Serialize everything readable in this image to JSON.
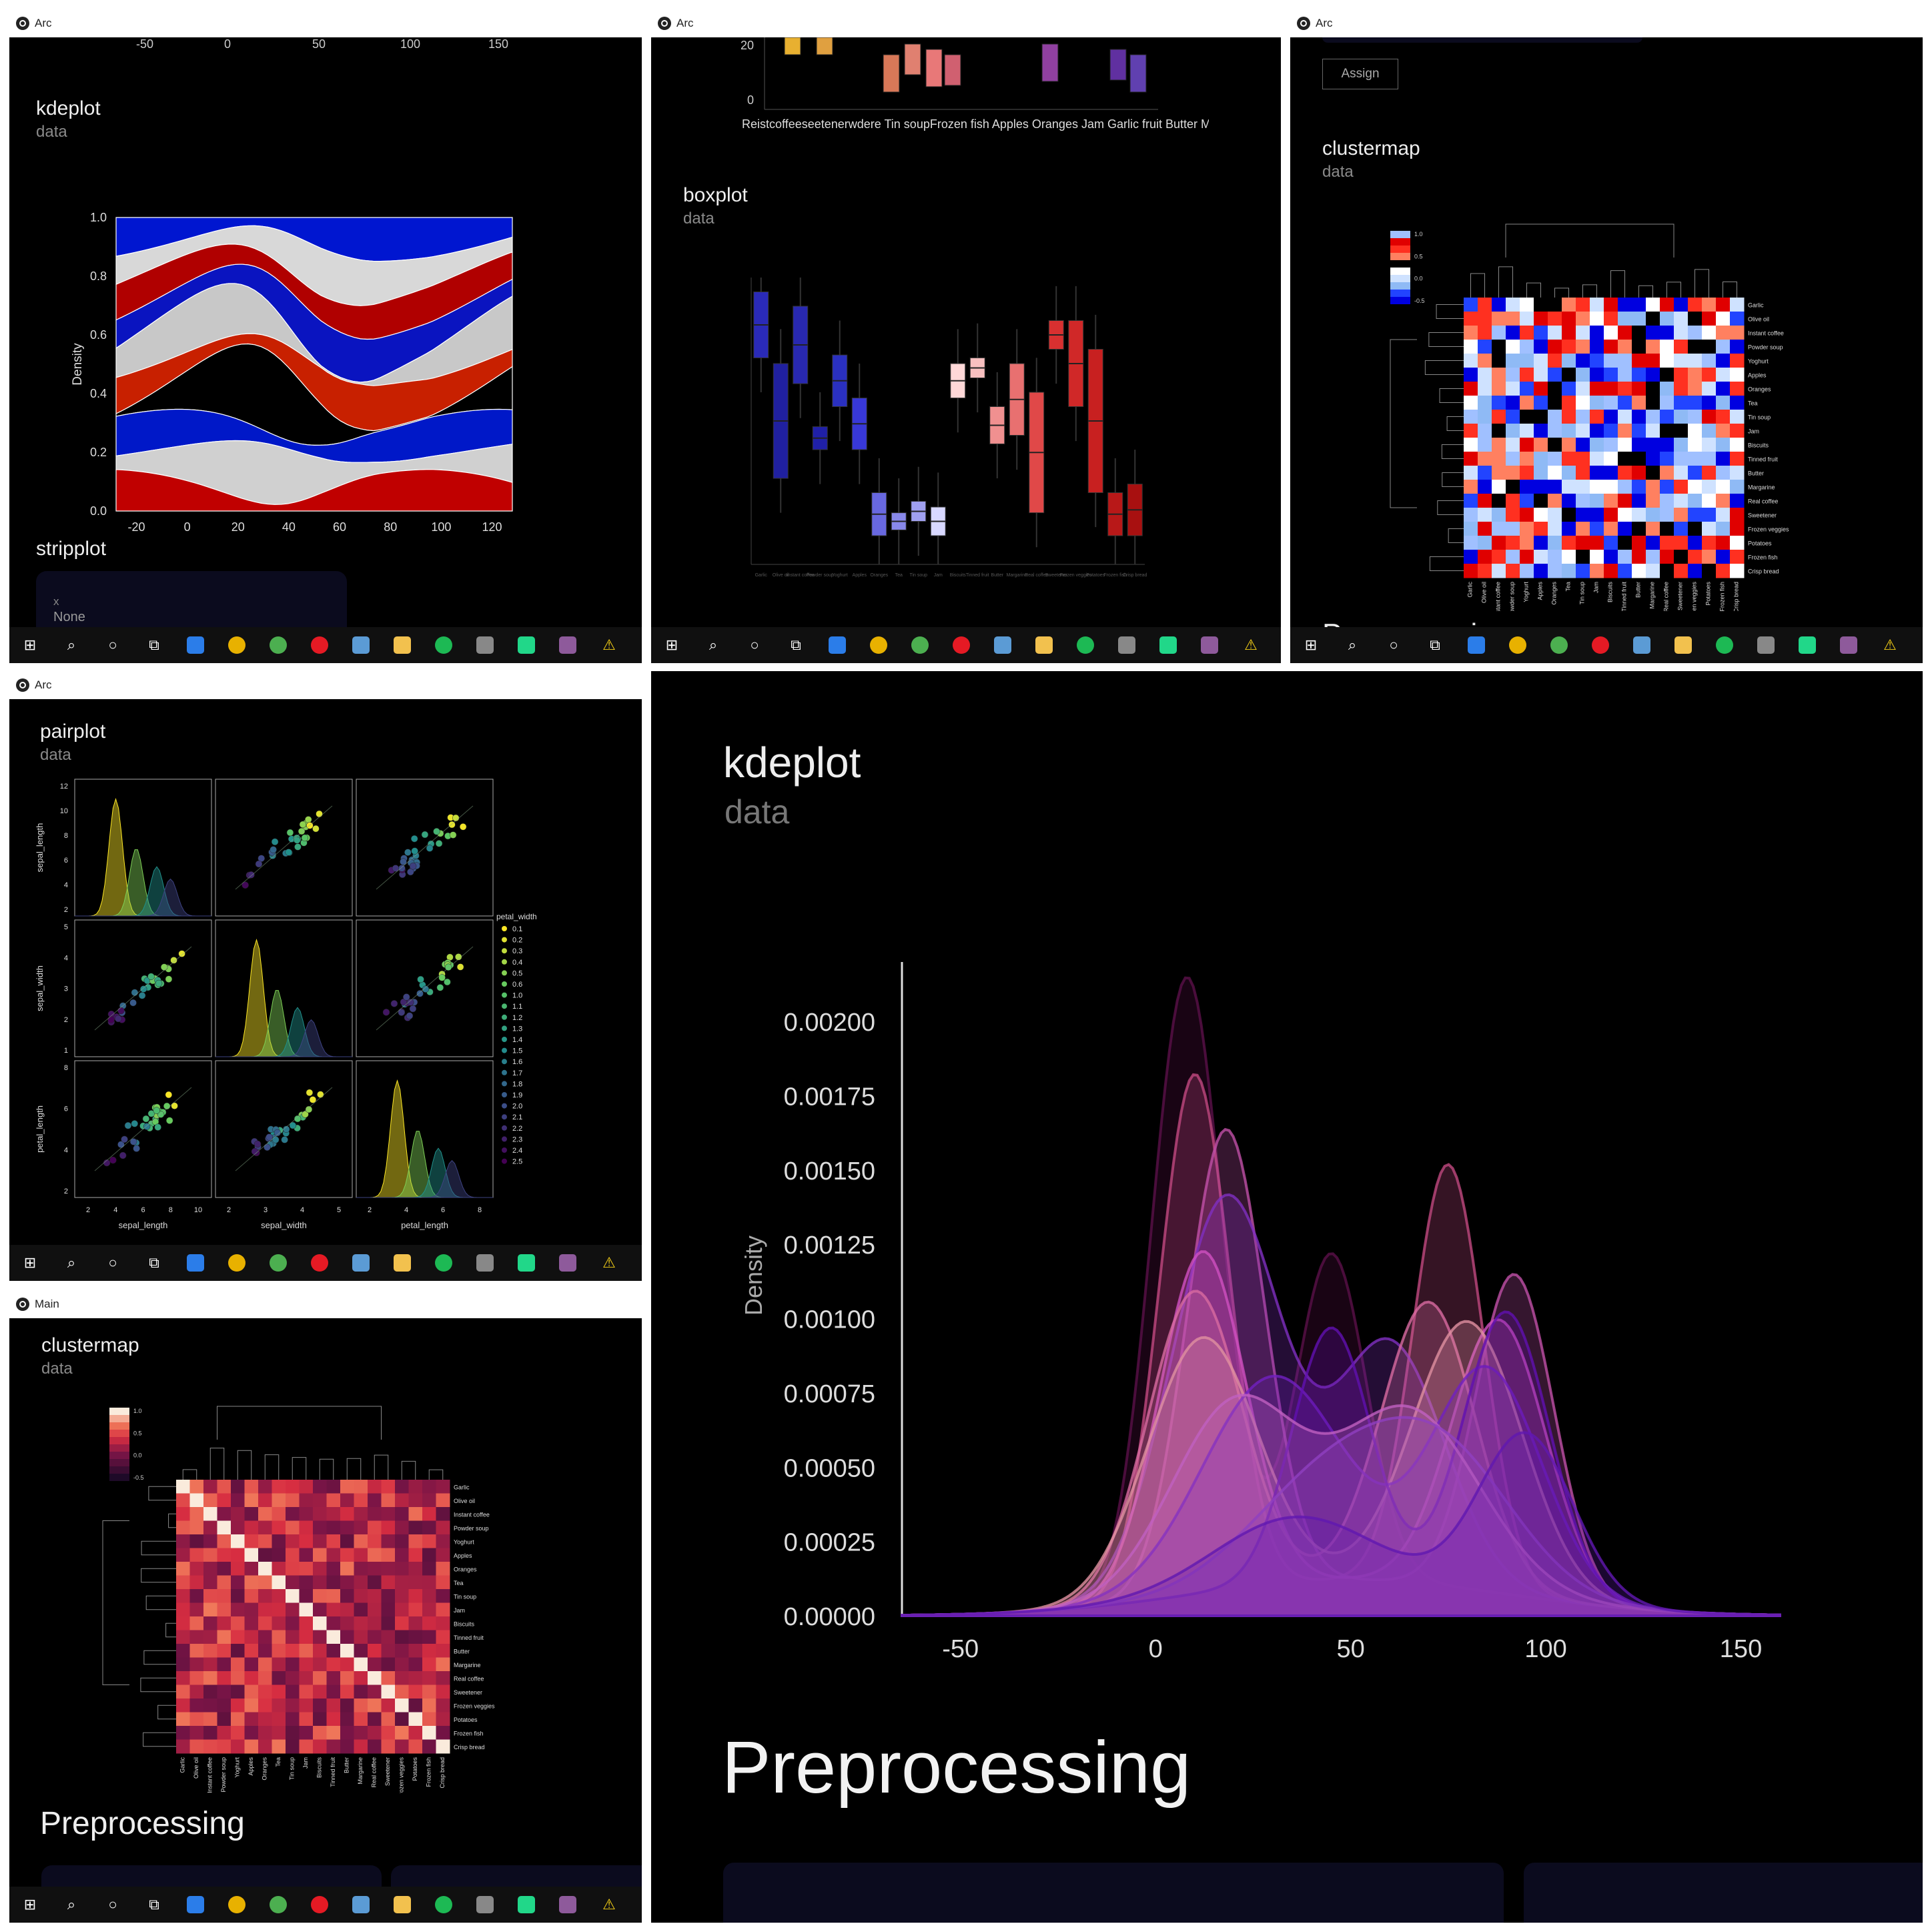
{
  "windows": [
    {
      "id": "w1",
      "title": "Arc",
      "heading": "kdeplot",
      "subheading": "data",
      "top_axis_ticks": [
        "-50",
        "0",
        "50",
        "100",
        "150"
      ],
      "next_heading": "stripplot",
      "input_label": "x",
      "input_value": "None"
    },
    {
      "id": "w2",
      "title": "Arc",
      "top_ticks_y": [
        "20",
        "0"
      ],
      "top_labels": "Reistcoffeeseetenerwdere Tin soupFrozen fish Apples Oranges Jam Garlic fruit Butter Margarine Olive oil Yoghurt Crispbread",
      "heading": "boxplot",
      "subheading": "data"
    },
    {
      "id": "w3",
      "title": "Arc",
      "assign_label": "Assign",
      "heading": "clustermap",
      "subheading": "data",
      "colorbar_ticks": [
        "1.0",
        "0.5",
        "0.0",
        "-0.5"
      ],
      "next_heading": "Preprocessing"
    },
    {
      "id": "w4",
      "title": "Arc",
      "heading": "pairplot",
      "subheading": "data",
      "legend_title": "petal_width",
      "legend_items": [
        "0.1",
        "0.2",
        "0.3",
        "0.4",
        "0.5",
        "0.6",
        "1.0",
        "1.1",
        "1.2",
        "1.3",
        "1.4",
        "1.5",
        "1.6",
        "1.7",
        "1.8",
        "1.9",
        "2.0",
        "2.1",
        "2.2",
        "2.3",
        "2.4",
        "2.5"
      ],
      "x_labels": [
        "sepal_length",
        "sepal_width",
        "petal_length"
      ],
      "y_labels": [
        "sepal_length",
        "sepal_width",
        "petal_length"
      ]
    },
    {
      "id": "w5",
      "title": "Main",
      "heading": "clustermap",
      "subheading": "data",
      "colorbar_ticks": [
        "1.0",
        "0.5",
        "0.0",
        "-0.5"
      ],
      "next_heading": "Preprocessing"
    },
    {
      "id": "w6",
      "heading": "kdeplot",
      "subheading": "data",
      "next_heading": "Preprocessing",
      "ylabel": "Density"
    }
  ],
  "food_labels": [
    "Garlic",
    "Olive oil",
    "Instant coffee",
    "Powder soup",
    "Yoghurt",
    "Apples",
    "Oranges",
    "Tea",
    "Tin soup",
    "Jam",
    "Biscuits",
    "Tinned fruit",
    "Butter",
    "Margarine",
    "Real coffee",
    "Sweetener",
    "Frozen veggies",
    "Potatoes",
    "Frozen fish",
    "Crisp bread"
  ],
  "taskbar_icons": [
    "windows-start",
    "search",
    "cortana",
    "task-view",
    "store",
    "chrome-dev",
    "chrome",
    "opera",
    "remote-desktop",
    "file-explorer",
    "spotify",
    "wacom",
    "pycharm",
    "app-tool",
    "warning"
  ],
  "chart_data": [
    {
      "type": "area",
      "title": "",
      "ylabel": "Density",
      "xlabel": "",
      "x_ticks": [
        "-20",
        "0",
        "20",
        "40",
        "60",
        "80",
        "100",
        "120"
      ],
      "y_ticks": [
        "0.0",
        "0.2",
        "0.4",
        "0.6",
        "0.8",
        "1.0"
      ],
      "ylim": [
        0,
        1
      ],
      "xlim": [
        -28,
        128
      ],
      "note": "stacked filled KDE, colors red/white/blue/black"
    },
    {
      "type": "bar",
      "title": "",
      "note": "boxplot per food item, blue to red palette",
      "categories": [
        "Garlic",
        "Olive oil",
        "Instant coffee",
        "Powder soup",
        "Yoghurt",
        "Apples",
        "Oranges",
        "Tea",
        "Tin soup",
        "Jam",
        "Biscuits",
        "Tinned fruit",
        "Butter",
        "Margarine",
        "Real coffee",
        "Sweetener",
        "Frozen veggies",
        "Potatoes",
        "Frozen fish",
        "Crisp bread"
      ],
      "boxes": [
        [
          72,
          86,
          95
        ],
        [
          30,
          50,
          70
        ],
        [
          63,
          80,
          90
        ],
        [
          40,
          45,
          48
        ],
        [
          55,
          68,
          73
        ],
        [
          40,
          50,
          58
        ],
        [
          10,
          15,
          25
        ],
        [
          12,
          15,
          18
        ],
        [
          15,
          20,
          22
        ],
        [
          10,
          15,
          20
        ],
        [
          58,
          65,
          70
        ],
        [
          65,
          70,
          72
        ],
        [
          42,
          48,
          55
        ],
        [
          45,
          55,
          70
        ],
        [
          18,
          30,
          60
        ],
        [
          75,
          80,
          85
        ],
        [
          55,
          70,
          85
        ],
        [
          25,
          50,
          75
        ],
        [
          10,
          20,
          25
        ],
        [
          10,
          20,
          28
        ]
      ]
    },
    {
      "type": "heatmap",
      "title": "",
      "note": "clustermap bwr",
      "colorbar": [
        -0.5,
        1.0
      ]
    },
    {
      "type": "scatter",
      "title": "",
      "note": "pairplot iris",
      "x_ticks": [
        [
          "2",
          "4",
          "6",
          "8",
          "10"
        ],
        [
          "2",
          "3",
          "4",
          "5"
        ],
        [
          "2",
          "4",
          "6",
          "8"
        ]
      ],
      "y_ticks": [
        [
          "2",
          "4",
          "6",
          "8",
          "10",
          "12"
        ],
        [
          "1",
          "2",
          "3",
          "4",
          "5"
        ],
        [
          "2",
          "4",
          "6",
          "8"
        ]
      ]
    },
    {
      "type": "heatmap",
      "title": "",
      "note": "clustermap rocket",
      "colorbar": [
        -0.5,
        1.0
      ]
    },
    {
      "type": "area",
      "title": "",
      "ylabel": "Density",
      "xlabel": "",
      "x_ticks": [
        "-50",
        "0",
        "50",
        "100",
        "150"
      ],
      "y_ticks": [
        "0.00000",
        "0.00025",
        "0.00050",
        "0.00075",
        "0.00100",
        "0.00125",
        "0.00150",
        "0.00175",
        "0.00200"
      ],
      "xlim": [
        -65,
        160
      ],
      "ylim": [
        0,
        0.0022
      ],
      "series": [
        {
          "peaks": [
            [
              8,
              0.00208,
              9
            ],
            [
              45,
              0.0011,
              9
            ]
          ]
        },
        {
          "peaks": [
            [
              10,
              0.00175,
              9
            ],
            [
              75,
              0.00142,
              9
            ]
          ]
        },
        {
          "peaks": [
            [
              18,
              0.00155,
              10
            ],
            [
              92,
              0.00108,
              10
            ]
          ]
        },
        {
          "peaks": [
            [
              18,
              0.00132,
              14
            ],
            [
              60,
              0.0008,
              14
            ]
          ]
        },
        {
          "peaks": [
            [
              12,
              0.00115,
              11
            ],
            [
              88,
              0.00092,
              12
            ]
          ]
        },
        {
          "peaks": [
            [
              10,
              0.00102,
              12
            ],
            [
              70,
              0.00095,
              12
            ]
          ]
        },
        {
          "peaks": [
            [
              12,
              0.00086,
              14
            ],
            [
              80,
              0.0009,
              14
            ]
          ]
        },
        {
          "peaks": [
            [
              30,
              0.0007,
              18
            ],
            [
              85,
              0.00075,
              14
            ]
          ]
        },
        {
          "peaks": [
            [
              45,
              0.00085,
              10
            ],
            [
              90,
              0.00095,
              11
            ]
          ]
        },
        {
          "peaks": [
            [
              20,
              0.00062,
              16
            ],
            [
              65,
              0.00058,
              18
            ]
          ]
        },
        {
          "peaks": [
            [
              45,
              0.00035,
              20
            ],
            [
              75,
              0.0004,
              18
            ]
          ]
        },
        {
          "peaks": [
            [
              35,
              0.00022,
              20
            ],
            [
              95,
              0.00055,
              12
            ]
          ]
        }
      ]
    }
  ]
}
